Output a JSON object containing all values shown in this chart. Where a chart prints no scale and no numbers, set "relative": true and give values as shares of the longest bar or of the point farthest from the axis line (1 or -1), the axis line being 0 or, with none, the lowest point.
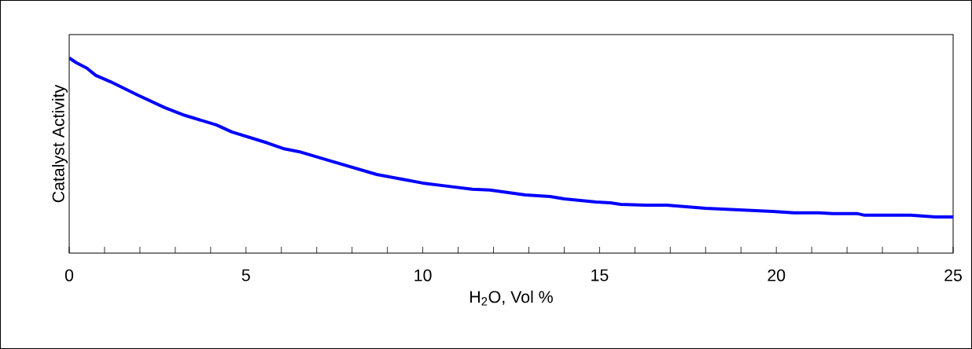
{
  "chart_data": {
    "type": "line",
    "relative": true,
    "xlabel": "H$_{2}$O, Vol %",
    "ylabel": "Catalyst Activity",
    "color": "#0000ff",
    "x": [
      0,
      0.2,
      0.5,
      0.75,
      1.16,
      1.94,
      2.7,
      3.27,
      4.16,
      4.6,
      5.6,
      6.05,
      6.5,
      7.4,
      8.7,
      10,
      10.7,
      11.4,
      11.9,
      12.9,
      13.6,
      14.0,
      14.9,
      15.3,
      15.6,
      16.3,
      16.9,
      18.0,
      19.9,
      20.5,
      21.2,
      21.6,
      22.3,
      22.5,
      23.8,
      24.5,
      25
    ],
    "values": [
      1.0,
      0.976,
      0.948,
      0.911,
      0.879,
      0.81,
      0.746,
      0.706,
      0.657,
      0.621,
      0.565,
      0.536,
      0.52,
      0.472,
      0.403,
      0.359,
      0.343,
      0.327,
      0.323,
      0.298,
      0.29,
      0.278,
      0.262,
      0.258,
      0.25,
      0.246,
      0.246,
      0.23,
      0.214,
      0.206,
      0.206,
      0.202,
      0.202,
      0.194,
      0.194,
      0.185,
      0.185
    ],
    "xlim": [
      0,
      25
    ],
    "xticks": [
      0,
      {
        "value": 1,
        "label": null
      },
      {
        "value": 2,
        "label": null
      },
      {
        "value": 3,
        "label": null
      },
      {
        "value": 4,
        "label": null
      },
      5,
      {
        "value": 6,
        "label": null
      },
      {
        "value": 7,
        "label": null
      },
      {
        "value": 8,
        "label": null
      },
      {
        "value": 9,
        "label": null
      },
      10,
      {
        "value": 11,
        "label": null
      },
      {
        "value": 12,
        "label": null
      },
      {
        "value": 13,
        "label": null
      },
      {
        "value": 14,
        "label": null
      },
      15,
      {
        "value": 16,
        "label": null
      },
      {
        "value": 17,
        "label": null
      },
      {
        "value": 18,
        "label": null
      },
      {
        "value": 19,
        "label": null
      },
      20,
      {
        "value": 21,
        "label": null
      },
      {
        "value": 22,
        "label": null
      },
      {
        "value": 23,
        "label": null
      },
      {
        "value": 24,
        "label": null
      },
      25
    ],
    "line_style": "solid",
    "marker": "none"
  }
}
